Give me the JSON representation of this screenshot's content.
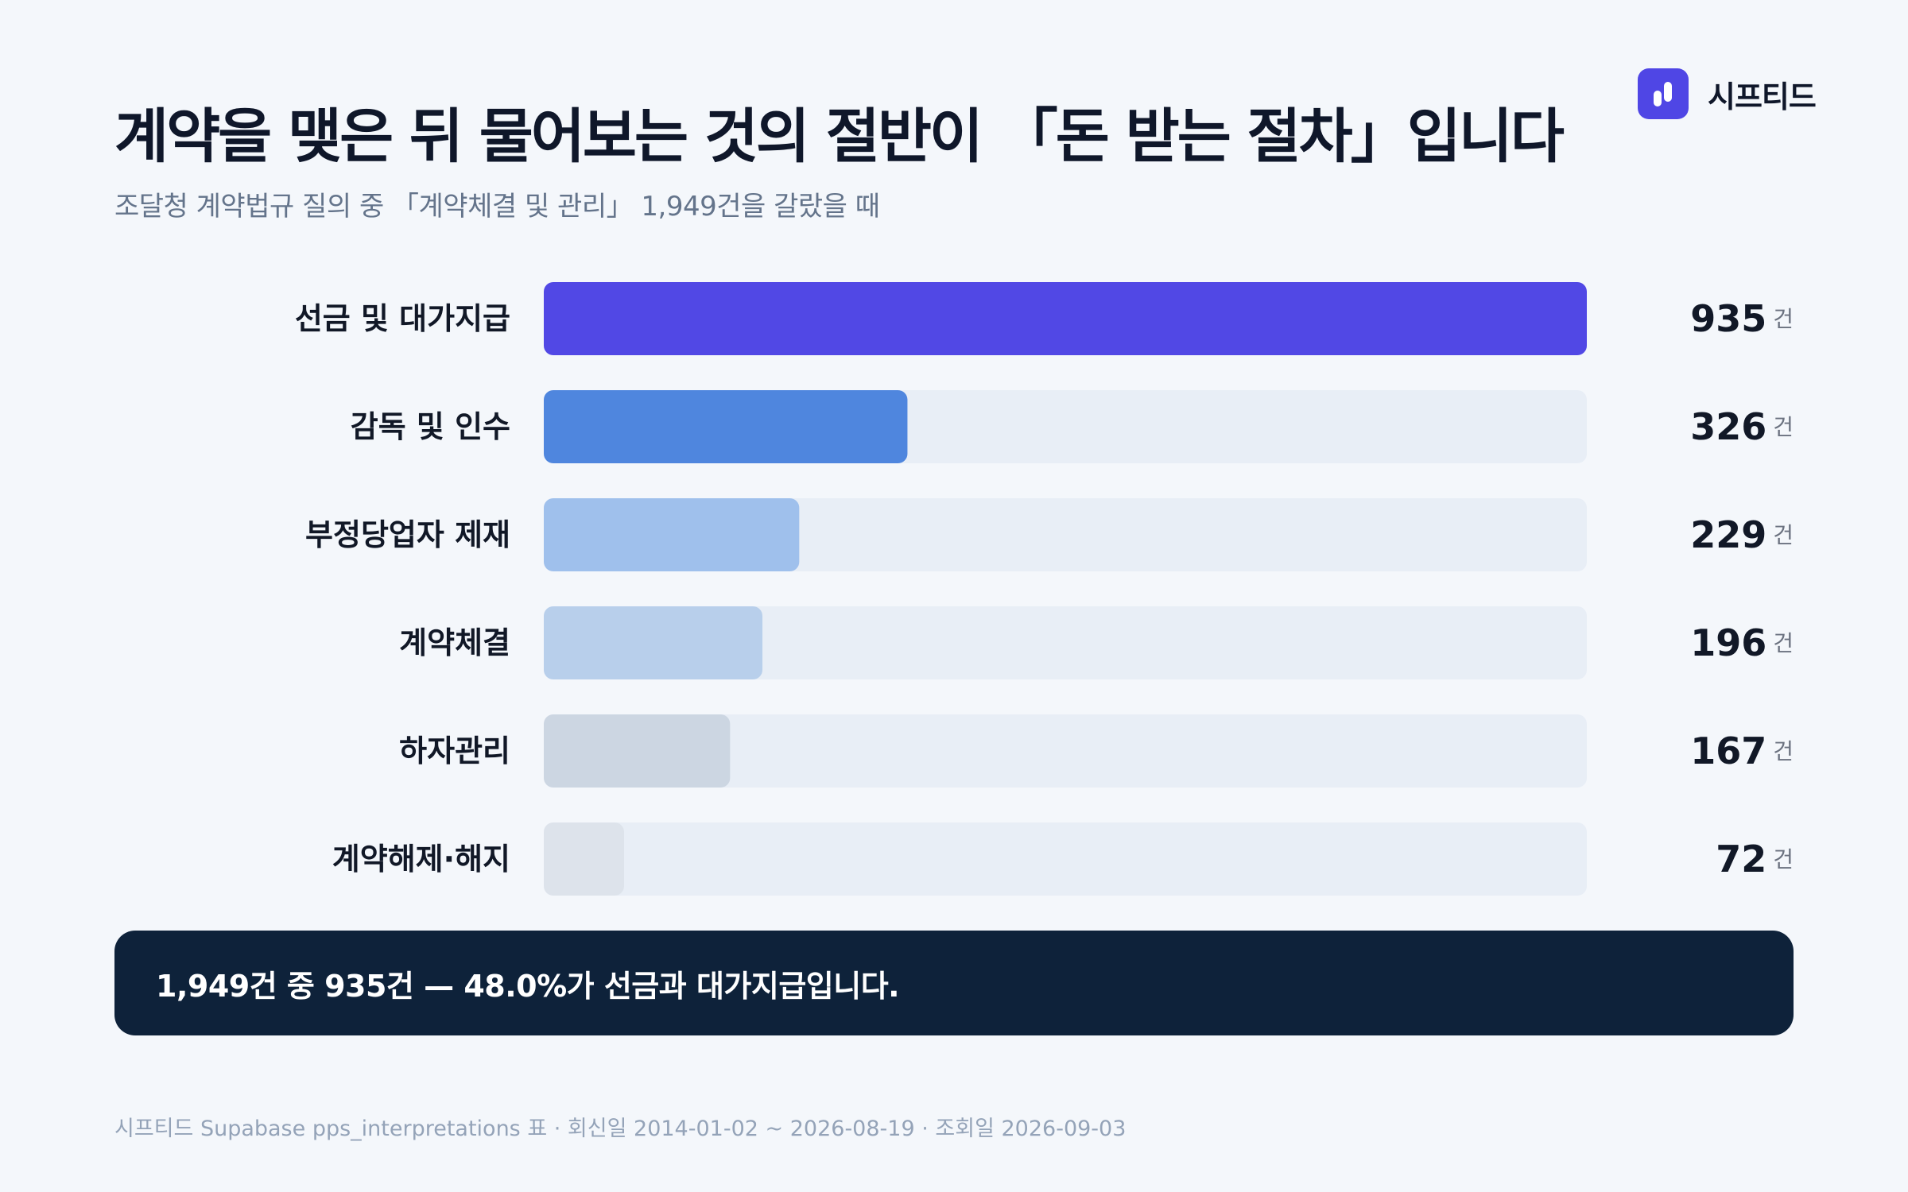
{
  "brand": {
    "name": "시프티드",
    "color": "#4f46e5"
  },
  "title": "계약을 맺은 뒤 물어보는 것의 절반이 「돈 받는 절차」입니다",
  "subtitle": "조달청 계약법규 질의 중 「계약체결 및 관리」 1,949건을 갈랐을 때",
  "chart_data": {
    "type": "bar",
    "orientation": "horizontal",
    "categories": [
      "선금 및 대가지급",
      "감독 및 인수",
      "부정당업자 제재",
      "계약체결",
      "하자관리",
      "계약해제·해지"
    ],
    "values": [
      935,
      326,
      229,
      196,
      167,
      72
    ],
    "unit": "건",
    "xlim": [
      0,
      935
    ],
    "bar_colors": [
      "#5148e5",
      "#4f86de",
      "#9fc0ec",
      "#b8cfeb",
      "#ccd6e2",
      "#dde3eb"
    ],
    "track_color": "#e8eef6",
    "grid": false
  },
  "summary": "1,949건 중 935건 — 48.0%가 선금과 대가지급입니다.",
  "footer": "시프티드 Supabase pps_interpretations 표 · 회신일 2014-01-02 ~ 2026-08-19 · 조회일 2026-09-03"
}
